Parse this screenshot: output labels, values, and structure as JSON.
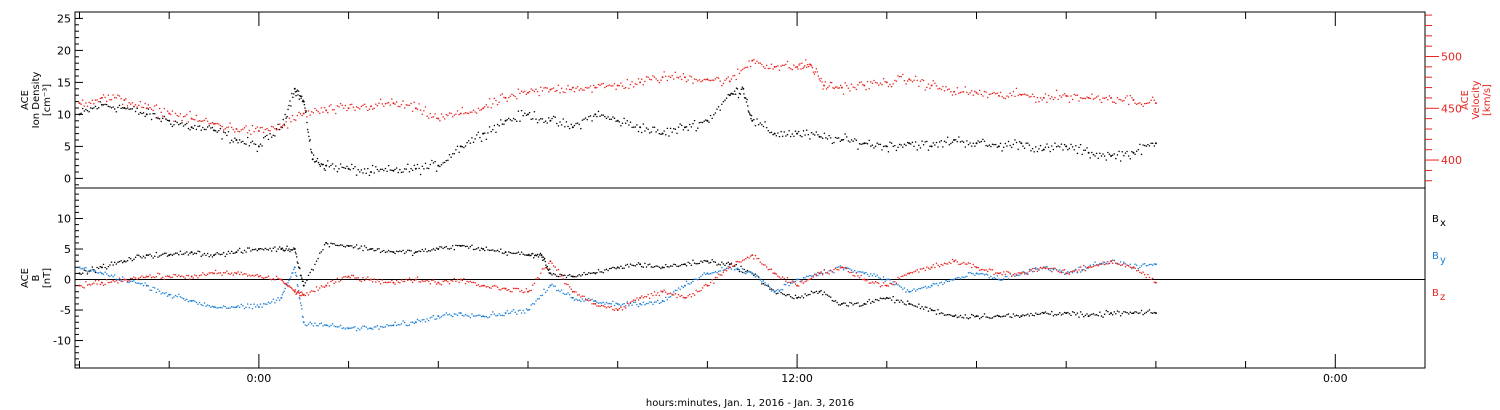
{
  "chart_data": {
    "type": "scatter",
    "xlabel": "hours:minutes, Jan.  1, 2016 - Jan.  3, 2016",
    "x_tick_labels": [
      "0:00",
      "12:00",
      "0:00"
    ],
    "x_ticks_hours": [
      0,
      12,
      24
    ],
    "x_range_hours": [
      -4.1,
      26.0
    ],
    "data_end_hours": 20.0,
    "panels": [
      {
        "name": "density-velocity",
        "left_axis": {
          "label_lines": [
            "ACE",
            "Ion Density",
            "[cm⁻³]"
          ],
          "range": [
            -1.5,
            26
          ],
          "ticks": [
            0,
            5,
            10,
            15,
            20,
            25
          ],
          "color": "#000000"
        },
        "right_axis": {
          "label_lines": [
            "ACE",
            "Velocity",
            "[km/s]"
          ],
          "range": [
            373,
            543
          ],
          "ticks": [
            400,
            450,
            500
          ],
          "color": "#e8231e"
        },
        "series": [
          {
            "axis": "left",
            "color": "#000000",
            "x": [
              -4.0,
              -3.5,
              -3.0,
              -2.5,
              -2.0,
              -1.5,
              -1.0,
              -0.5,
              0.0,
              0.5,
              0.8,
              1.0,
              1.2,
              1.5,
              2.0,
              2.5,
              3.0,
              3.5,
              4.0,
              4.5,
              5.0,
              5.5,
              6.0,
              6.5,
              7.0,
              7.5,
              8.0,
              8.5,
              9.0,
              9.5,
              10.0,
              10.5,
              10.8,
              11.0,
              11.5,
              12.0,
              12.5,
              13.0,
              13.5,
              14.0,
              14.5,
              15.0,
              15.5,
              16.0,
              16.5,
              17.0,
              17.5,
              18.0,
              18.5,
              19.0,
              19.5,
              20.0
            ],
            "y": [
              10,
              11.5,
              11,
              10,
              9,
              8,
              7.5,
              6,
              5,
              8,
              14,
              12,
              3,
              2,
              1.5,
              1,
              1.2,
              1.5,
              2,
              5,
              7,
              9,
              10,
              9,
              8,
              10,
              9,
              8,
              7,
              8,
              9,
              13,
              14,
              9,
              7,
              7,
              6.5,
              6,
              5.5,
              5,
              5.5,
              5,
              6,
              5.5,
              5,
              5.5,
              4.5,
              5,
              4,
              3.5,
              4,
              5.5
            ]
          },
          {
            "axis": "right",
            "color": "#e8231e",
            "x": [
              -4.0,
              -3.5,
              -3.0,
              -2.5,
              -2.0,
              -1.5,
              -1.0,
              -0.5,
              0.0,
              0.5,
              1.0,
              1.5,
              2.0,
              2.5,
              3.0,
              3.5,
              4.0,
              4.5,
              5.0,
              5.5,
              6.0,
              6.5,
              7.0,
              7.5,
              8.0,
              8.5,
              9.0,
              9.5,
              10.0,
              10.5,
              11.0,
              11.5,
              12.0,
              12.3,
              12.6,
              13.0,
              13.5,
              14.0,
              14.5,
              15.0,
              15.5,
              16.0,
              16.5,
              17.0,
              17.5,
              18.0,
              18.5,
              19.0,
              19.5,
              20.0
            ],
            "y": [
              455,
              460,
              458,
              450,
              445,
              440,
              435,
              430,
              428,
              432,
              445,
              448,
              450,
              452,
              455,
              450,
              440,
              445,
              450,
              460,
              465,
              468,
              470,
              470,
              472,
              475,
              480,
              480,
              478,
              476,
              496,
              490,
              490,
              492,
              472,
              470,
              472,
              475,
              478,
              472,
              466,
              465,
              462,
              463,
              460,
              462,
              460,
              460,
              458,
              455
            ]
          }
        ]
      },
      {
        "name": "magnetic-field",
        "left_axis": {
          "label_lines": [
            "ACE",
            "B",
            "[nT]"
          ],
          "range": [
            -14.5,
            15
          ],
          "ticks": [
            -10,
            -5,
            0,
            5,
            10
          ],
          "color": "#000000"
        },
        "zero_line": true,
        "series": [
          {
            "name": "Bx",
            "color": "#000000",
            "x": [
              -4.0,
              -3.5,
              -3.0,
              -2.5,
              -2.0,
              -1.5,
              -1.0,
              -0.5,
              0.0,
              0.5,
              0.8,
              1.0,
              1.5,
              2.0,
              2.5,
              3.0,
              3.5,
              4.0,
              4.5,
              5.0,
              5.5,
              6.0,
              6.3,
              6.5,
              7.0,
              7.5,
              8.0,
              8.5,
              9.0,
              9.5,
              10.0,
              10.5,
              11.0,
              11.5,
              12.0,
              12.5,
              13.0,
              13.5,
              14.0,
              14.5,
              15.0,
              15.5,
              16.0,
              16.5,
              17.0,
              17.5,
              18.0,
              18.5,
              19.0,
              19.5,
              20.0
            ],
            "y": [
              1,
              2,
              3,
              4,
              4,
              4.5,
              4,
              4.5,
              5,
              5,
              5,
              -1,
              6,
              5.5,
              5,
              4.5,
              4.5,
              5,
              5.5,
              5,
              4.5,
              4,
              4,
              1,
              0.5,
              1,
              2,
              2.5,
              2,
              2.5,
              3,
              2.5,
              1,
              -2,
              -3,
              -2,
              -4,
              -4,
              -3,
              -4,
              -5,
              -6,
              -6,
              -6,
              -6,
              -5.5,
              -5.5,
              -6,
              -5.5,
              -5.5,
              -5.5
            ]
          },
          {
            "name": "By",
            "color": "#1a7fd6",
            "x": [
              -4.0,
              -3.5,
              -3.0,
              -2.5,
              -2.0,
              -1.5,
              -1.0,
              -0.5,
              0.0,
              0.5,
              0.8,
              1.0,
              1.5,
              2.0,
              2.5,
              3.0,
              3.5,
              4.0,
              4.5,
              5.0,
              5.5,
              6.0,
              6.5,
              7.0,
              7.5,
              8.0,
              8.5,
              9.0,
              9.5,
              10.0,
              10.5,
              11.0,
              11.5,
              12.0,
              12.5,
              13.0,
              13.5,
              14.0,
              14.5,
              15.0,
              15.5,
              16.0,
              16.5,
              17.0,
              17.5,
              18.0,
              18.5,
              19.0,
              19.5,
              20.0
            ],
            "y": [
              2,
              1,
              0,
              -1,
              -2.5,
              -3.5,
              -4.5,
              -4.5,
              -4.5,
              -3,
              2,
              -7,
              -7.5,
              -8,
              -8,
              -7.5,
              -7,
              -6,
              -5.5,
              -6,
              -5.5,
              -5,
              -1,
              -3,
              -3.5,
              -4,
              -4,
              -3.5,
              -1,
              1,
              2,
              1,
              -2,
              0,
              1,
              2,
              1,
              0,
              -2,
              -1,
              0,
              1,
              0,
              1,
              2,
              1,
              2,
              3,
              2,
              2.5
            ]
          },
          {
            "name": "Bz",
            "color": "#e8231e",
            "x": [
              -4.0,
              -3.5,
              -3.0,
              -2.5,
              -2.0,
              -1.5,
              -1.0,
              -0.5,
              0.0,
              0.5,
              0.8,
              1.0,
              1.5,
              2.0,
              2.5,
              3.0,
              3.5,
              4.0,
              4.5,
              5.0,
              5.5,
              6.0,
              6.5,
              7.0,
              7.5,
              8.0,
              8.5,
              9.0,
              9.5,
              10.0,
              10.5,
              11.0,
              11.5,
              12.0,
              12.5,
              13.0,
              13.5,
              14.0,
              14.5,
              15.0,
              15.5,
              16.0,
              16.5,
              17.0,
              17.5,
              18.0,
              18.5,
              19.0,
              19.5,
              20.0
            ],
            "y": [
              -1,
              -0.5,
              0,
              0.5,
              0.5,
              0.5,
              1,
              1,
              0.5,
              0,
              -2,
              -2.5,
              -1,
              0.5,
              0,
              -0.5,
              0,
              -0.5,
              0,
              -1,
              -1.5,
              -2,
              3,
              -2,
              -4,
              -5,
              -3,
              -2,
              -3,
              -1,
              2,
              4,
              1,
              -1,
              1,
              2,
              0,
              -1,
              1,
              2,
              3,
              2,
              1,
              1,
              2,
              1,
              2,
              3,
              2,
              -0.5
            ]
          }
        ]
      }
    ],
    "legend": {
      "placement": "right",
      "entries": [
        {
          "name": "B",
          "sub": "x",
          "color": "#000000"
        },
        {
          "name": "B",
          "sub": "y",
          "color": "#1a7fd6"
        },
        {
          "name": "B",
          "sub": "z",
          "color": "#e8231e"
        }
      ]
    }
  }
}
